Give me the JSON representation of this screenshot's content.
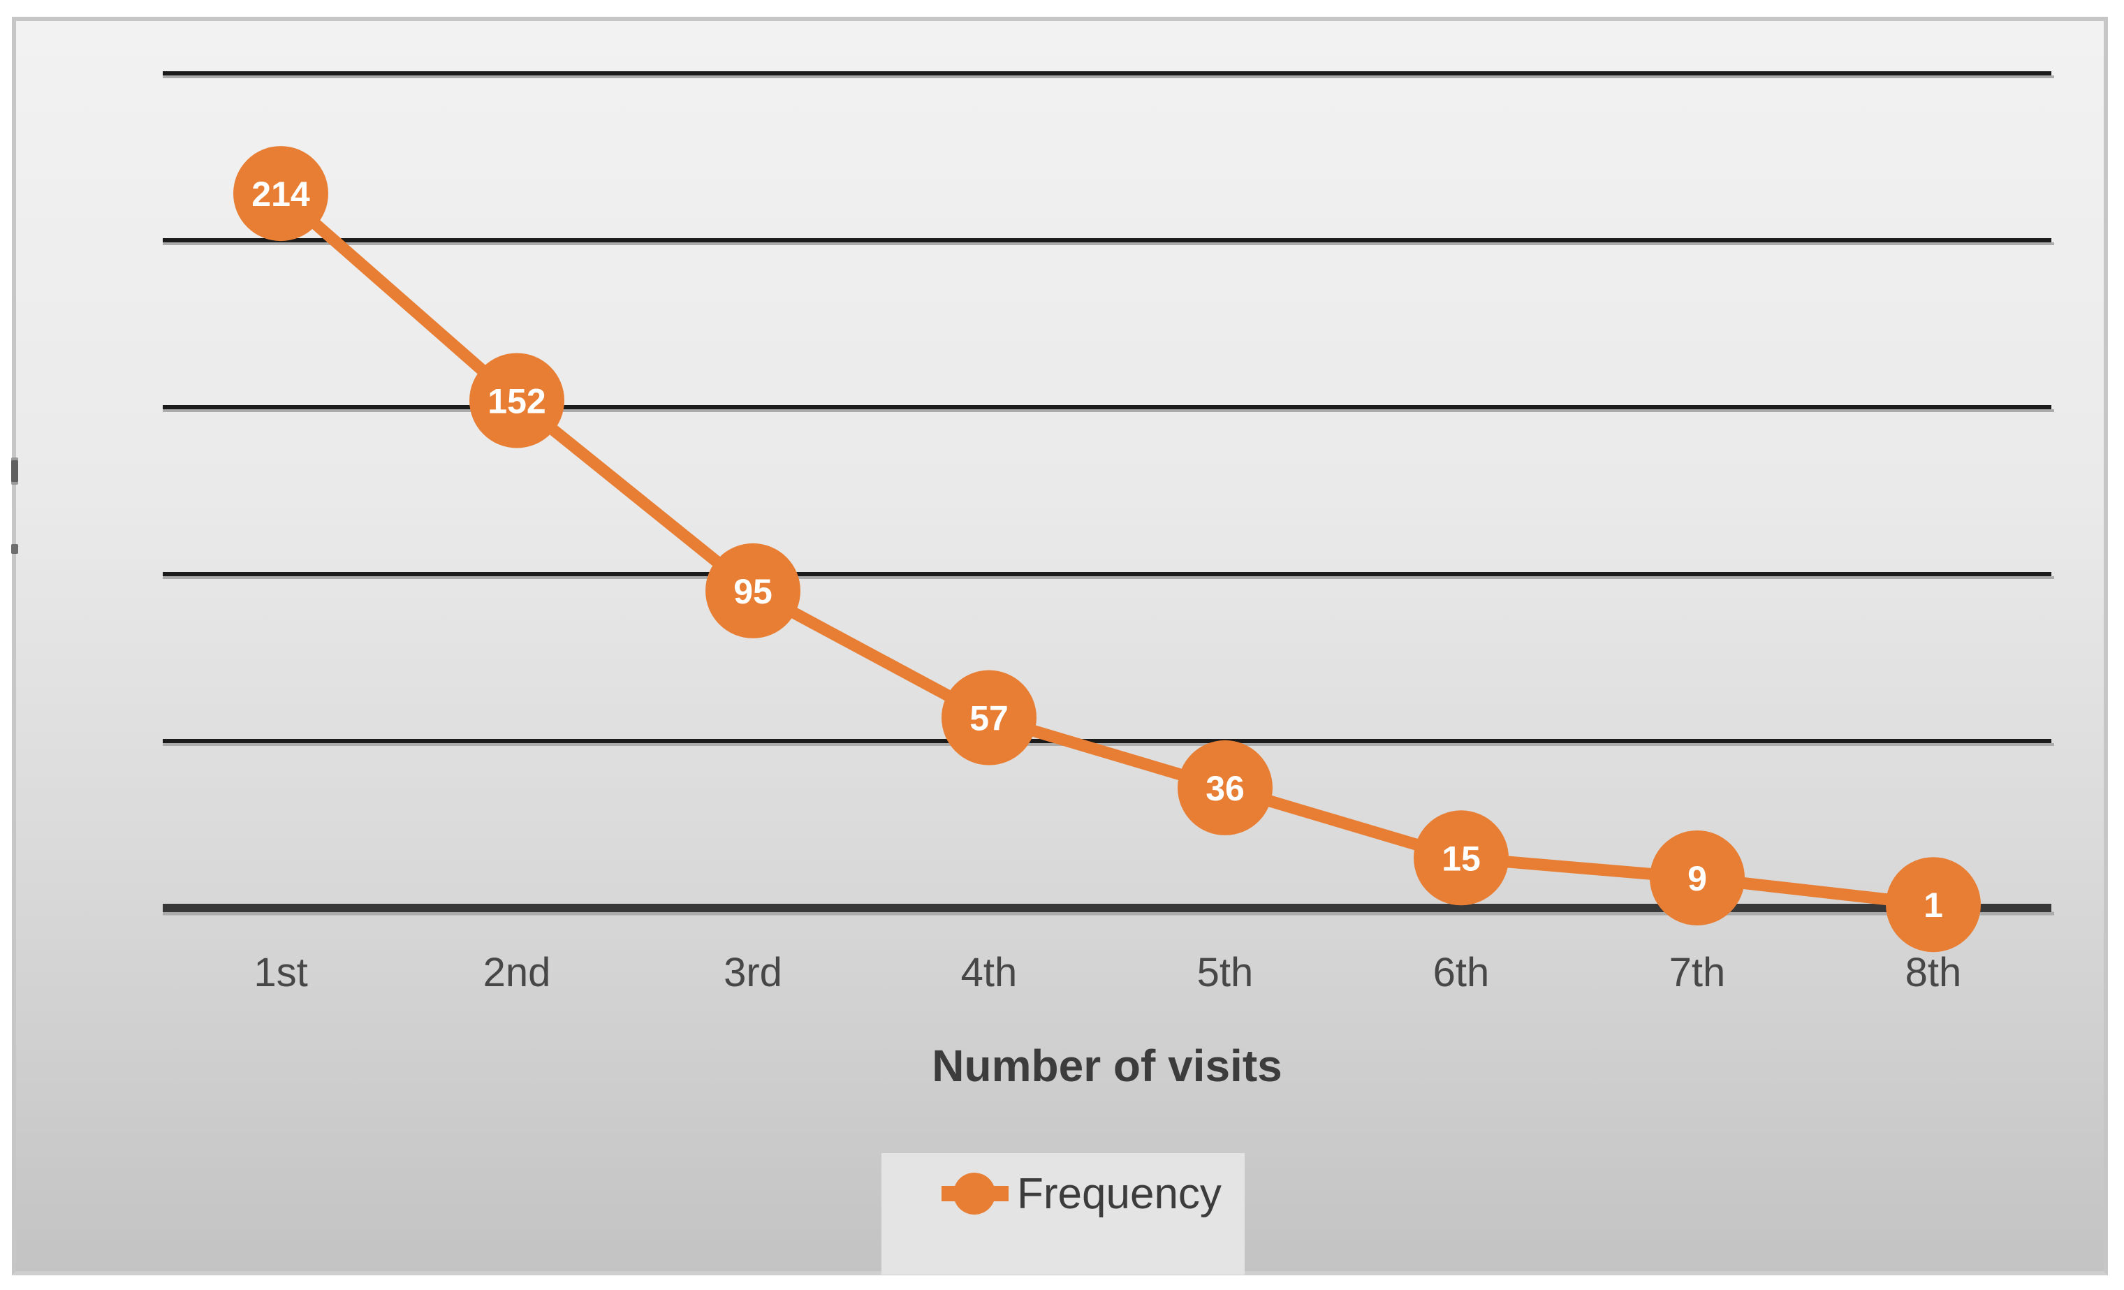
{
  "colors": {
    "accent_orange": "#E87E33",
    "gridline_black": "#1B1B1B",
    "gridline_shadow": "#ABABAB",
    "axis_line": "#383838",
    "tick_text": "#474747",
    "title_text": "#3C3C3C",
    "data_label_text": "#FFFFFF",
    "legend_background": "#E4E4E4",
    "panel_border": "#C6C6C6"
  },
  "chart_data": {
    "type": "line",
    "title": "",
    "categories": [
      "1st",
      "2nd",
      "3rd",
      "4th",
      "5th",
      "6th",
      "7th",
      "8th"
    ],
    "series": [
      {
        "name": "Frequency",
        "color": "#E87E33",
        "values": [
          214,
          152,
          95,
          57,
          36,
          15,
          9,
          1
        ]
      }
    ],
    "xlabel": "Number of visits",
    "ylabel": "",
    "ylim": [
      0,
      250
    ],
    "ytick_interval": 50,
    "yaxis_labels_visible": false,
    "grid": true,
    "data_labels": "on-marker",
    "legend_position": "bottom"
  }
}
